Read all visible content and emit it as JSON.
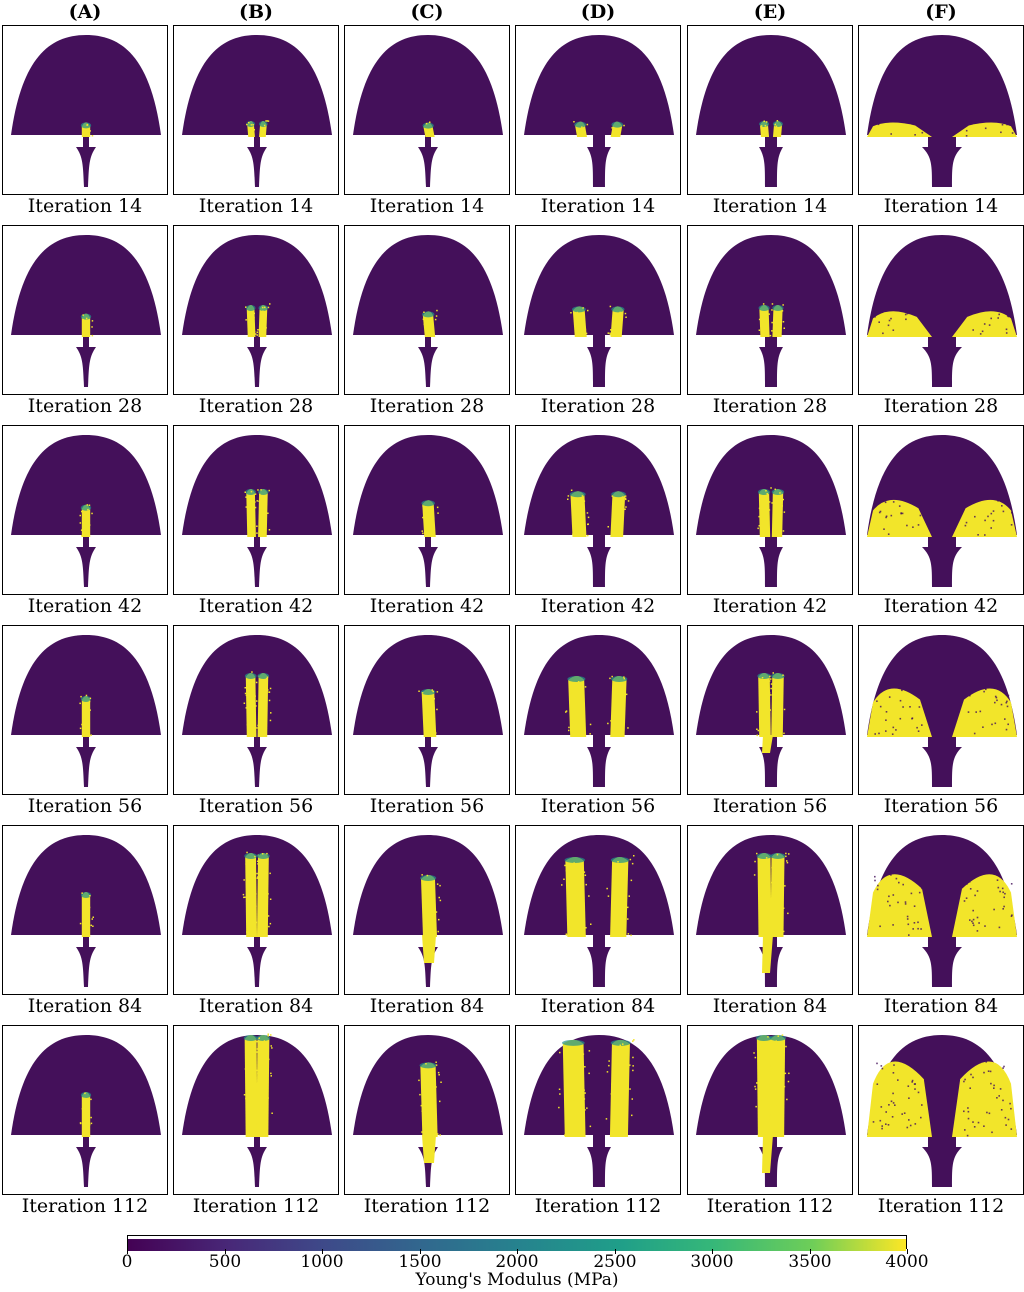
{
  "columns": [
    "(A)",
    "(B)",
    "(C)",
    "(D)",
    "(E)",
    "(F)"
  ],
  "rows": [
    {
      "caption": "Iteration 14"
    },
    {
      "caption": "Iteration 28"
    },
    {
      "caption": "Iteration 42"
    },
    {
      "caption": "Iteration 56"
    },
    {
      "caption": "Iteration 84"
    },
    {
      "caption": "Iteration 112"
    }
  ],
  "colorbar": {
    "label": "Young's Modulus (MPa)",
    "min": 0,
    "max": 4000,
    "ticks": [
      "0",
      "500",
      "1000",
      "1500",
      "2000",
      "2500",
      "3000",
      "3500",
      "4000"
    ],
    "colormap": "viridis"
  },
  "colors": {
    "low": "#44105a",
    "mid": "#21918c",
    "high": "#f2e52a"
  }
}
